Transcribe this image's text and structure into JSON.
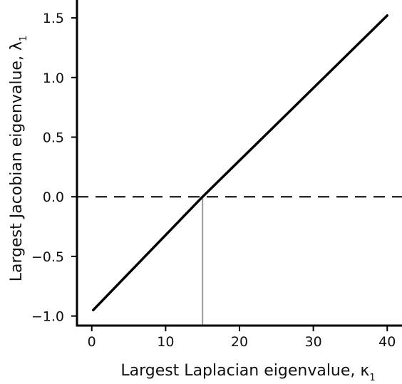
{
  "chart_data": {
    "type": "line",
    "xlabel": "Largest Laplacian eigenvalue, κ",
    "xlabel_subscript": "1",
    "ylabel": "Largest Jacobian eigenvalue, λ",
    "ylabel_subscript": "1",
    "xlim": [
      -2,
      42
    ],
    "ylim": [
      -1.08,
      1.65
    ],
    "x_ticks": [
      0,
      10,
      20,
      30,
      40
    ],
    "x_tick_labels": [
      "0",
      "10",
      "20",
      "30",
      "40"
    ],
    "y_ticks": [
      -1.0,
      -0.5,
      0.0,
      0.5,
      1.0,
      1.5
    ],
    "y_tick_labels": [
      "−1.0",
      "−0.5",
      "0.0",
      "0.5",
      "1.0",
      "1.5"
    ],
    "series": [
      {
        "x": [
          0.2,
          15,
          40
        ],
        "y": [
          -0.95,
          0.0,
          1.52
        ],
        "color": "#000000",
        "style": "solid"
      }
    ],
    "reference_lines": [
      {
        "orientation": "horizontal",
        "y": 0.0,
        "style": "dashed",
        "color": "#000000"
      },
      {
        "orientation": "vertical",
        "x": 15,
        "y_from": -1.08,
        "y_to": 0.0,
        "style": "solid",
        "color": "#999999"
      }
    ],
    "grid": false,
    "legend": "none"
  }
}
